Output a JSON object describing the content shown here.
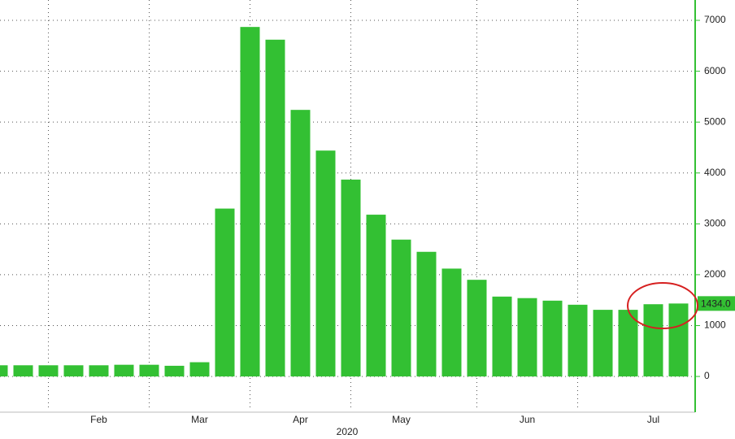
{
  "chart_data": {
    "type": "bar",
    "x_label": "2020",
    "categories": [
      null,
      null,
      null,
      null,
      "Feb",
      null,
      null,
      null,
      "Mar",
      null,
      null,
      null,
      "Apr",
      null,
      null,
      null,
      "May",
      null,
      null,
      null,
      null,
      "Jun",
      null,
      null,
      null,
      null,
      "Jul",
      null
    ],
    "values": [
      220,
      220,
      220,
      220,
      220,
      230,
      230,
      210,
      280,
      3300,
      6870,
      6620,
      5240,
      4440,
      3870,
      3180,
      2690,
      2450,
      2120,
      1900,
      1570,
      1540,
      1490,
      1410,
      1310,
      1310,
      1420,
      1434
    ],
    "value_labels": [
      null,
      null,
      null,
      null,
      null,
      null,
      null,
      null,
      null,
      null,
      null,
      null,
      null,
      null,
      null,
      null,
      null,
      null,
      null,
      null,
      null,
      null,
      null,
      null,
      null,
      null,
      null,
      "1434.0"
    ],
    "color": "#33c033",
    "ylim": [
      -670,
      7400
    ],
    "yticks": [
      0,
      1000,
      2000,
      3000,
      4000,
      5000,
      6000,
      7000
    ],
    "grid": true
  }
}
